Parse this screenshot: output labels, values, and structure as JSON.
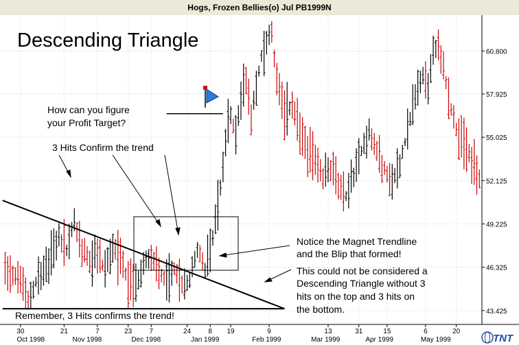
{
  "window": {
    "title": "Hogs, Frozen Bellies(o) Jul PB1999N"
  },
  "logo": {
    "text": "TNT"
  },
  "chart_data": {
    "type": "ohlc",
    "title": "Descending Triangle",
    "y_ticks": [
      "60.800",
      "57.925",
      "55.025",
      "52.125",
      "49.225",
      "46.325",
      "43.425"
    ],
    "ylim": [
      42.5,
      63.2
    ],
    "x_day_labels": [
      {
        "label": "30",
        "t": 0
      },
      {
        "label": "21",
        "t": 17
      },
      {
        "label": "7",
        "t": 30
      },
      {
        "label": "23",
        "t": 42
      },
      {
        "label": "7",
        "t": 51
      },
      {
        "label": "24",
        "t": 65
      },
      {
        "label": "8",
        "t": 74
      },
      {
        "label": "19",
        "t": 82
      },
      {
        "label": "9",
        "t": 97
      },
      {
        "label": "13",
        "t": 120
      },
      {
        "label": "31",
        "t": 132
      },
      {
        "label": "15",
        "t": 143
      },
      {
        "label": "6",
        "t": 158
      },
      {
        "label": "20",
        "t": 170
      }
    ],
    "x_month_labels": [
      {
        "label": "Oct 1998",
        "t": 4
      },
      {
        "label": "Nov 1998",
        "t": 26
      },
      {
        "label": "Dec 1998",
        "t": 49
      },
      {
        "label": "Jan 1999",
        "t": 72
      },
      {
        "label": "Feb 1999",
        "t": 96
      },
      {
        "label": "Mar 1999",
        "t": 119
      },
      {
        "label": "Apr 1999",
        "t": 140
      },
      {
        "label": "May 1999",
        "t": 162
      }
    ],
    "t_range": [
      -8,
      180
    ],
    "segments": [
      {
        "t": -6,
        "p": 46.4
      },
      {
        "t": 0,
        "p": 45.5
      },
      {
        "t": 3,
        "p": 44.0
      },
      {
        "t": 7,
        "p": 45.8
      },
      {
        "t": 11,
        "p": 46.6
      },
      {
        "t": 15,
        "p": 48.3
      },
      {
        "t": 18,
        "p": 47.5
      },
      {
        "t": 21,
        "p": 49.4
      },
      {
        "t": 24,
        "p": 47.6
      },
      {
        "t": 27,
        "p": 46.8
      },
      {
        "t": 30,
        "p": 47.2
      },
      {
        "t": 33,
        "p": 46.2
      },
      {
        "t": 36,
        "p": 47.8
      },
      {
        "t": 39,
        "p": 46.8
      },
      {
        "t": 42,
        "p": 45.3
      },
      {
        "t": 45,
        "p": 45.0
      },
      {
        "t": 48,
        "p": 46.5
      },
      {
        "t": 51,
        "p": 47.3
      },
      {
        "t": 54,
        "p": 46.0
      },
      {
        "t": 57,
        "p": 45.4
      },
      {
        "t": 60,
        "p": 46.1
      },
      {
        "t": 63,
        "p": 45.0
      },
      {
        "t": 66,
        "p": 45.4
      },
      {
        "t": 69,
        "p": 47.6
      },
      {
        "t": 72,
        "p": 46.3
      },
      {
        "t": 74,
        "p": 47.2
      },
      {
        "t": 76,
        "p": 49.5
      },
      {
        "t": 78,
        "p": 51.6
      },
      {
        "t": 80,
        "p": 54.8
      },
      {
        "t": 82,
        "p": 56.4
      },
      {
        "t": 84,
        "p": 55.5
      },
      {
        "t": 86,
        "p": 57.6
      },
      {
        "t": 88,
        "p": 58.9
      },
      {
        "t": 90,
        "p": 56.6
      },
      {
        "t": 92,
        "p": 58.2
      },
      {
        "t": 94,
        "p": 60.5
      },
      {
        "t": 96,
        "p": 61.3
      },
      {
        "t": 98,
        "p": 62.2
      },
      {
        "t": 100,
        "p": 58.6
      },
      {
        "t": 103,
        "p": 56.6
      },
      {
        "t": 106,
        "p": 57.2
      },
      {
        "t": 109,
        "p": 55.4
      },
      {
        "t": 112,
        "p": 54.3
      },
      {
        "t": 115,
        "p": 53.6
      },
      {
        "t": 118,
        "p": 52.3
      },
      {
        "t": 121,
        "p": 52.9
      },
      {
        "t": 124,
        "p": 51.9
      },
      {
        "t": 127,
        "p": 51.1
      },
      {
        "t": 130,
        "p": 52.6
      },
      {
        "t": 133,
        "p": 54.2
      },
      {
        "t": 136,
        "p": 55.3
      },
      {
        "t": 139,
        "p": 54.2
      },
      {
        "t": 142,
        "p": 52.8
      },
      {
        "t": 145,
        "p": 52.2
      },
      {
        "t": 148,
        "p": 53.3
      },
      {
        "t": 151,
        "p": 55.4
      },
      {
        "t": 154,
        "p": 57.6
      },
      {
        "t": 157,
        "p": 59.2
      },
      {
        "t": 159,
        "p": 58.4
      },
      {
        "t": 161,
        "p": 60.8
      },
      {
        "t": 163,
        "p": 61.4
      },
      {
        "t": 165,
        "p": 59.6
      },
      {
        "t": 167,
        "p": 57.5
      },
      {
        "t": 170,
        "p": 55.6
      },
      {
        "t": 173,
        "p": 54.6
      },
      {
        "t": 176,
        "p": 53.4
      },
      {
        "t": 179,
        "p": 52.3
      }
    ],
    "lines": {
      "descending_trendline": [
        {
          "t": -7,
          "p": 50.8
        },
        {
          "t": 103,
          "p": 43.55
        }
      ],
      "support_line": [
        {
          "t": -7,
          "p": 43.55
        },
        {
          "t": 103,
          "p": 43.55
        }
      ],
      "profit_target_line": [
        {
          "t": 57,
          "p": 56.6
        },
        {
          "t": 79,
          "p": 56.6
        }
      ]
    },
    "annotations": [
      "How can you figure",
      "your Profit Target?",
      "3 Hits Confirm the trend",
      "Notice the Magnet Trendline",
      "and the Blip that formed!",
      "This could not be considered a",
      "Descending Triangle without 3",
      "hits on the top and 3 hits on",
      "the bottom.",
      "Remember, 3 Hits confirms the trend!"
    ]
  }
}
